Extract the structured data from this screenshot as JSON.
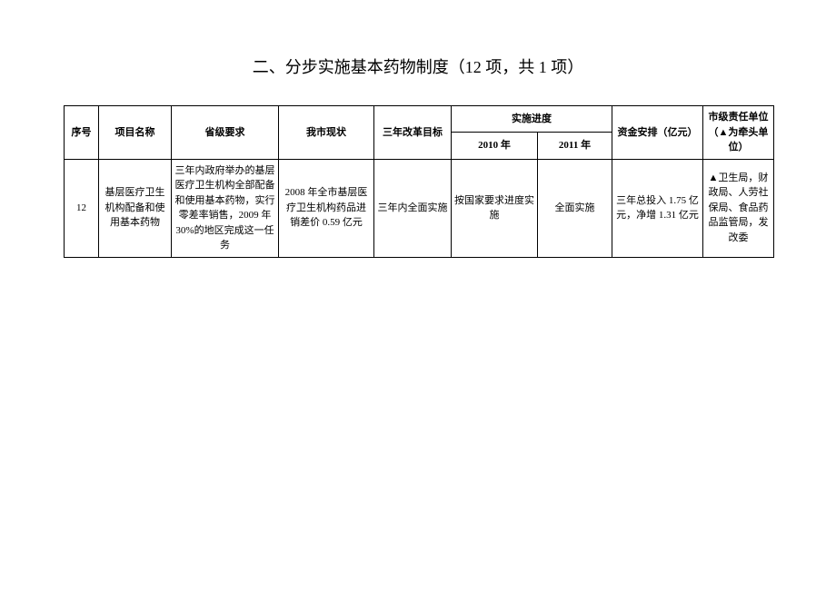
{
  "title": "二、分步实施基本药物制度（12 项，共 1 项）",
  "table": {
    "header": {
      "seq": "序号",
      "name": "项目名称",
      "prov": "省级要求",
      "status": "我市现状",
      "target": "三年改革目标",
      "progress": "实施进度",
      "y2010": "2010 年",
      "y2011": "2011 年",
      "fund": "资金安排（亿元）",
      "resp": "市级责任单位（▲为牵头单位）"
    },
    "row": {
      "seq": "12",
      "name": "基层医疗卫生机构配备和使用基本药物",
      "prov": "三年内政府举办的基层医疗卫生机构全部配备和使用基本药物，实行零差率销售，2009 年30%的地区完成这一任务",
      "status": "2008 年全市基层医疗卫生机构药品进销差价 0.59 亿元",
      "target": "三年内全面实施",
      "y2010": "按国家要求进度实施",
      "y2011": "全面实施",
      "fund": "三年总投入 1.75 亿元，净增 1.31 亿元",
      "resp": "▲卫生局，财政局、人劳社保局、食品药品监管局，发改委"
    }
  }
}
